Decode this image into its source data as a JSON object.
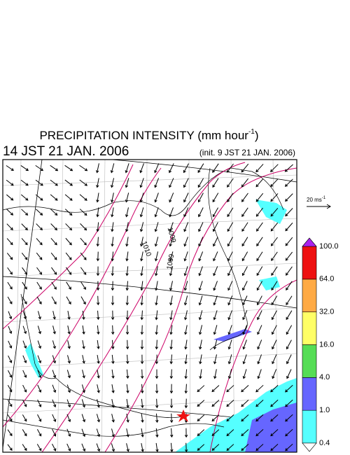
{
  "header": {
    "title": "PRECIPITATION INTENSITY (mm hour",
    "title_exponent": "-1",
    "title_close": ")",
    "time": "14 JST 21 JAN. 2006",
    "init": "(init. 9 JST 21 JAN. 2006)"
  },
  "wind_scale": {
    "label": "20 ms",
    "exponent": "-1"
  },
  "isobar_labels": [
    "1010",
    "1009",
    "1009"
  ],
  "colorbar": {
    "levels": [
      "0.4",
      "1.0",
      "4.0",
      "16.0",
      "32.0",
      "64.0",
      "100.0"
    ],
    "colors": [
      "#55ffff",
      "#6666ff",
      "#55dd55",
      "#ffff66",
      "#ffaa44",
      "#ee1111"
    ],
    "under_color": "#ffffff",
    "over_color": "#aa22ee"
  }
}
